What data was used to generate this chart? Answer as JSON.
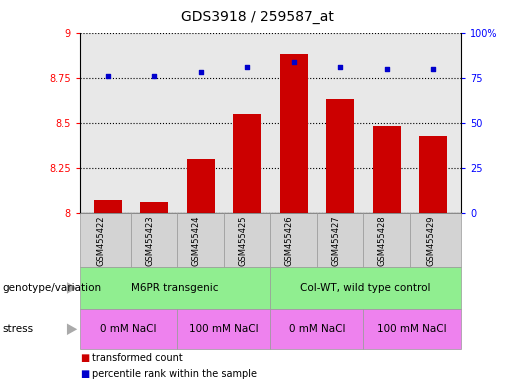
{
  "title": "GDS3918 / 259587_at",
  "samples": [
    "GSM455422",
    "GSM455423",
    "GSM455424",
    "GSM455425",
    "GSM455426",
    "GSM455427",
    "GSM455428",
    "GSM455429"
  ],
  "transformed_count": [
    8.07,
    8.06,
    8.3,
    8.55,
    8.88,
    8.63,
    8.48,
    8.43
  ],
  "percentile_rank": [
    76,
    76,
    78,
    81,
    84,
    81,
    80,
    80
  ],
  "bar_color": "#cc0000",
  "dot_color": "#0000cc",
  "left_ylim": [
    8.0,
    9.0
  ],
  "right_ylim": [
    0,
    100
  ],
  "left_yticks": [
    8.0,
    8.25,
    8.5,
    8.75,
    9.0
  ],
  "left_yticklabels": [
    "8",
    "8.25",
    "8.5",
    "8.75",
    "9"
  ],
  "right_yticks": [
    0,
    25,
    50,
    75,
    100
  ],
  "right_yticklabels": [
    "0",
    "25",
    "50",
    "75",
    "100%"
  ],
  "genotype_label": "genotype/variation",
  "stress_label": "stress",
  "geno_groups": [
    {
      "label": "M6PR transgenic",
      "samples": [
        0,
        1,
        2,
        3
      ],
      "color": "#90ee90"
    },
    {
      "label": "Col-WT, wild type control",
      "samples": [
        4,
        5,
        6,
        7
      ],
      "color": "#90ee90"
    }
  ],
  "stress_groups": [
    {
      "label": "0 mM NaCl",
      "samples": [
        0,
        1
      ],
      "color": "#ee82ee"
    },
    {
      "label": "100 mM NaCl",
      "samples": [
        2,
        3
      ],
      "color": "#ee82ee"
    },
    {
      "label": "0 mM NaCl",
      "samples": [
        4,
        5
      ],
      "color": "#ee82ee"
    },
    {
      "label": "100 mM NaCl",
      "samples": [
        6,
        7
      ],
      "color": "#ee82ee"
    }
  ],
  "legend_items": [
    {
      "color": "#cc0000",
      "label": "transformed count"
    },
    {
      "color": "#0000cc",
      "label": "percentile rank within the sample"
    }
  ],
  "bar_width": 0.6,
  "background_plot": "#e8e8e8",
  "title_fontsize": 10,
  "tick_fontsize": 7,
  "annotation_fontsize": 7.5,
  "legend_fontsize": 7
}
